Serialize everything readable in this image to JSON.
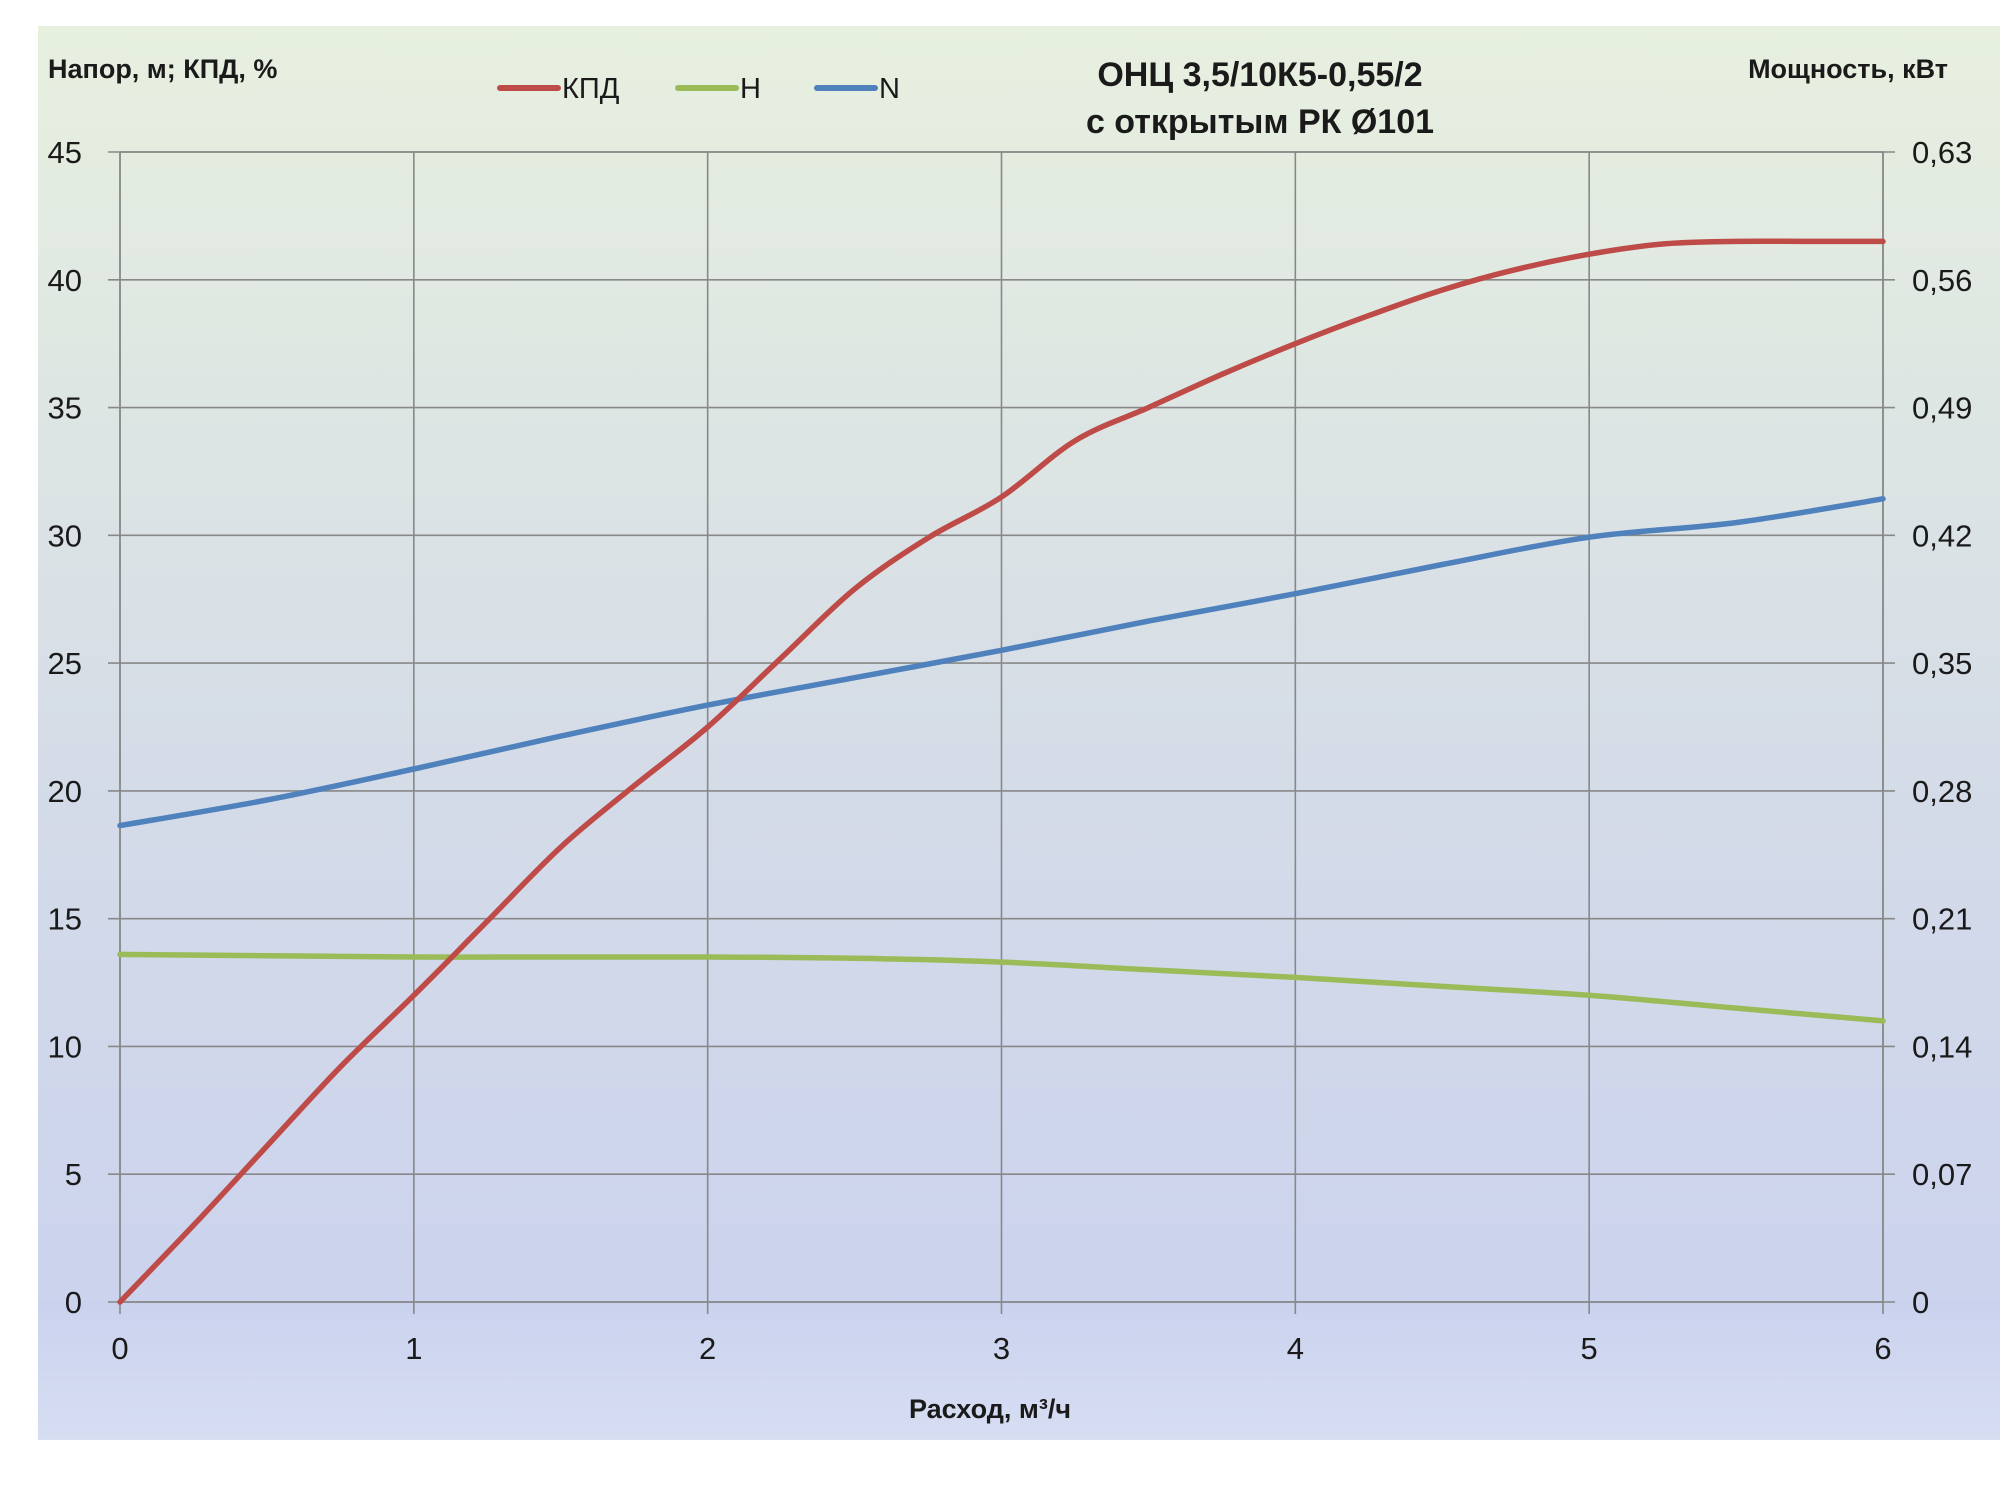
{
  "chart_data": {
    "type": "line",
    "title_lines": [
      "ОНЦ 3,5/10К5-0,55/2",
      "с открытым РК Ø101"
    ],
    "xlabel": "Расход, м³/ч",
    "ylabel_left": "Напор, м; КПД, %",
    "ylabel_right": "Мощность, кВт",
    "xlim": [
      0,
      6
    ],
    "ylim_left": [
      0,
      45
    ],
    "ylim_right": [
      0,
      0.63
    ],
    "x_ticks": [
      "0",
      "1",
      "2",
      "3",
      "4",
      "5",
      "6"
    ],
    "y_ticks_left": [
      "0",
      "5",
      "10",
      "15",
      "20",
      "25",
      "30",
      "35",
      "40",
      "45"
    ],
    "y_ticks_right": [
      "0",
      "0,07",
      "0,14",
      "0,21",
      "0,28",
      "0,35",
      "0,42",
      "0,49",
      "0,56",
      "0,63"
    ],
    "grid": true,
    "legend_position": "top",
    "series": [
      {
        "name": "КПД",
        "axis": "left",
        "color": "#be4b48",
        "x": [
          0,
          0.25,
          0.5,
          0.75,
          1.0,
          1.25,
          1.5,
          1.75,
          2.0,
          2.25,
          2.5,
          2.75,
          3.0,
          3.25,
          3.5,
          3.75,
          4.0,
          4.25,
          4.5,
          4.75,
          5.0,
          5.25,
          5.5,
          5.75,
          6.0
        ],
        "y": [
          0,
          3.0,
          6.1,
          9.2,
          12.0,
          14.9,
          17.8,
          20.2,
          22.5,
          25.2,
          27.9,
          29.9,
          31.5,
          33.7,
          35.0,
          36.3,
          37.5,
          38.6,
          39.6,
          40.4,
          41.0,
          41.4,
          41.5,
          41.5,
          41.5
        ]
      },
      {
        "name": "Н",
        "axis": "left",
        "color": "#9bbb59",
        "x": [
          0,
          0.5,
          1.0,
          1.5,
          2.0,
          2.5,
          3.0,
          3.5,
          4.0,
          4.5,
          5.0,
          5.5,
          6.0
        ],
        "y": [
          13.6,
          13.55,
          13.5,
          13.5,
          13.5,
          13.45,
          13.3,
          13.0,
          12.7,
          12.35,
          12.0,
          11.5,
          11.0
        ]
      },
      {
        "name": "N",
        "axis": "right",
        "color": "#4f81bd",
        "x": [
          0,
          0.5,
          1.0,
          1.5,
          2.0,
          2.5,
          3.0,
          3.5,
          4.0,
          4.5,
          5.0,
          5.5,
          6.0
        ],
        "y": [
          0.261,
          0.275,
          0.292,
          0.31,
          0.327,
          0.342,
          0.357,
          0.373,
          0.388,
          0.404,
          0.419,
          0.427,
          0.44
        ]
      }
    ]
  }
}
